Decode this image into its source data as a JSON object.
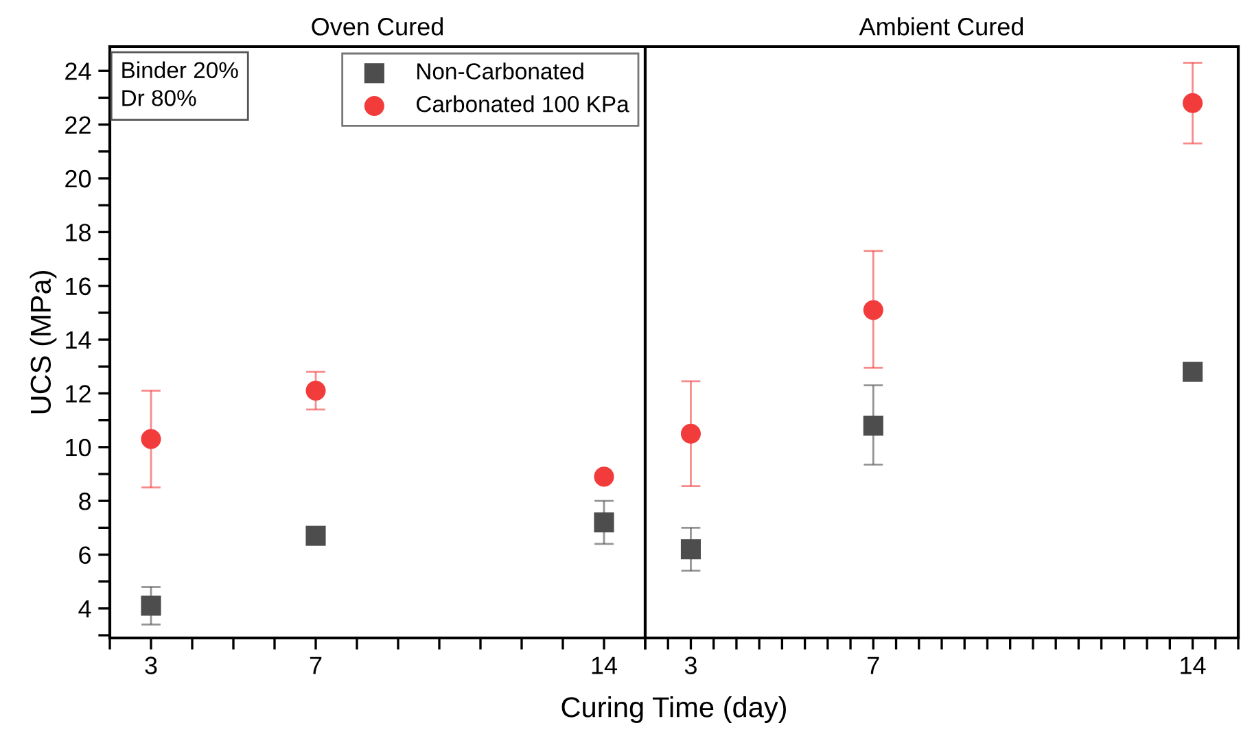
{
  "chart_data": [
    {
      "type": "scatter",
      "title": "Oven Cured",
      "xlabel": "Curing Time (day)",
      "ylabel": "UCS (MPa)",
      "annotations": [
        "Binder 20%\nDr 80%"
      ],
      "xlim": [
        2,
        15
      ],
      "xticks": [
        {
          "value": 2,
          "label": null
        },
        {
          "value": 3,
          "label": "3"
        },
        {
          "value": 4,
          "label": null
        },
        {
          "value": 5,
          "label": null
        },
        {
          "value": 6,
          "label": null
        },
        {
          "value": 7,
          "label": "7"
        },
        {
          "value": 8,
          "label": null
        },
        {
          "value": 9,
          "label": null
        },
        {
          "value": 10,
          "label": null
        },
        {
          "value": 11,
          "label": null
        },
        {
          "value": 12,
          "label": null
        },
        {
          "value": 13,
          "label": null
        },
        {
          "value": 14,
          "label": "14"
        },
        {
          "value": 15,
          "label": null
        }
      ],
      "ylim": [
        2.9,
        24.9
      ],
      "yticks": [
        {
          "value": 3,
          "label": null
        },
        4,
        {
          "value": 5,
          "label": null
        },
        6,
        {
          "value": 7,
          "label": null
        },
        8,
        {
          "value": 9,
          "label": null
        },
        10,
        {
          "value": 11,
          "label": null
        },
        12,
        {
          "value": 13,
          "label": null
        },
        14,
        {
          "value": 15,
          "label": null
        },
        16,
        {
          "value": 17,
          "label": null
        },
        18,
        {
          "value": 19,
          "label": null
        },
        20,
        {
          "value": 21,
          "label": null
        },
        22,
        {
          "value": 23,
          "label": null
        },
        24
      ],
      "legend": "top right",
      "x": [
        3,
        7,
        14
      ],
      "series": [
        {
          "name": "Non-Carbonated",
          "color": "#4d4d4d",
          "marker": "square",
          "values": [
            4.1,
            6.7,
            7.2
          ],
          "errors": [
            [
              3.4,
              4.8
            ],
            null,
            [
              6.4,
              8.0
            ]
          ]
        },
        {
          "name": "Carbonated 100 KPa",
          "color": "#f23c3c",
          "marker": "circle",
          "values": [
            10.3,
            12.1,
            8.9
          ],
          "errors": [
            [
              8.5,
              12.1
            ],
            [
              11.4,
              12.8
            ],
            null
          ]
        }
      ]
    },
    {
      "type": "scatter",
      "title": "Ambient Cured",
      "tick_labels": "x",
      "xlim": [
        2,
        15
      ],
      "xticks": [
        {
          "value": 2,
          "label": null
        },
        {
          "value": 2.5,
          "label": null
        },
        {
          "value": 3,
          "label": "3"
        },
        {
          "value": 3.5,
          "label": null
        },
        {
          "value": 4,
          "label": null
        },
        {
          "value": 4.5,
          "label": null
        },
        {
          "value": 5,
          "label": null
        },
        {
          "value": 5.5,
          "label": null
        },
        {
          "value": 6,
          "label": null
        },
        {
          "value": 6.5,
          "label": null
        },
        {
          "value": 7,
          "label": "7"
        },
        {
          "value": 7.5,
          "label": null
        },
        {
          "value": 8,
          "label": null
        },
        {
          "value": 8.5,
          "label": null
        },
        {
          "value": 9,
          "label": null
        },
        {
          "value": 9.5,
          "label": null
        },
        {
          "value": 10,
          "label": null
        },
        {
          "value": 10.5,
          "label": null
        },
        {
          "value": 11,
          "label": null
        },
        {
          "value": 11.5,
          "label": null
        },
        {
          "value": 12,
          "label": null
        },
        {
          "value": 12.5,
          "label": null
        },
        {
          "value": 13,
          "label": null
        },
        {
          "value": 13.5,
          "label": null
        },
        {
          "value": 14,
          "label": "14"
        },
        {
          "value": 14.5,
          "label": null
        },
        {
          "value": 15,
          "label": null
        }
      ],
      "ylim": [
        2.9,
        24.9
      ],
      "x": [
        3,
        7,
        14
      ],
      "series": [
        {
          "color": "#4d4d4d",
          "marker": "square",
          "values": [
            6.2,
            10.8,
            12.8
          ],
          "errors": [
            [
              5.4,
              7.0
            ],
            [
              9.35,
              12.3
            ],
            null
          ]
        },
        {
          "color": "#f23c3c",
          "marker": "circle",
          "values": [
            10.5,
            15.1,
            22.8
          ],
          "errors": [
            [
              8.55,
              12.45
            ],
            [
              12.95,
              17.3
            ],
            [
              21.3,
              24.3
            ]
          ]
        }
      ]
    }
  ]
}
